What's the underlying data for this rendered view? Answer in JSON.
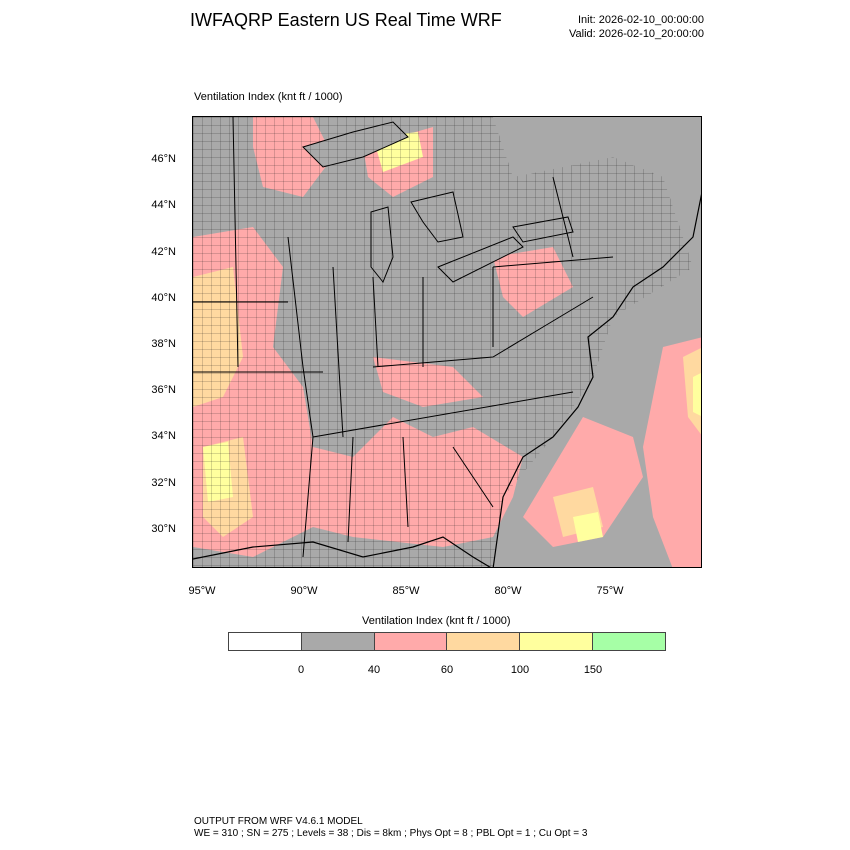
{
  "header": {
    "title": "IWFAQRP Eastern US Real Time WRF",
    "init": "Init: 2026-02-10_00:00:00",
    "valid": "Valid: 2026-02-10_20:00:00"
  },
  "plot": {
    "label": "Ventilation Index   (knt ft / 1000)",
    "map_region": "Eastern United States",
    "lat_ticks": [
      "46°N",
      "44°N",
      "42°N",
      "40°N",
      "38°N",
      "36°N",
      "34°N",
      "32°N",
      "30°N"
    ],
    "lon_ticks": [
      "95°W",
      "90°W",
      "85°W",
      "80°W",
      "75°W"
    ]
  },
  "legend": {
    "title": "Ventilation Index  (knt ft / 1000)",
    "colors": [
      "#ffffff",
      "#a9a9a9",
      "#ffaaaa",
      "#ffd9a0",
      "#ffff9e",
      "#a6ffa6"
    ],
    "labels": [
      "0",
      "40",
      "60",
      "100",
      "150"
    ]
  },
  "footer": {
    "line1": "OUTPUT FROM WRF V4.6.1 MODEL",
    "line2": "WE = 310 ; SN = 275 ; Levels = 38 ; Dis = 8km ; Phys Opt = 8 ; PBL Opt = 1 ; Cu Opt = 3"
  }
}
